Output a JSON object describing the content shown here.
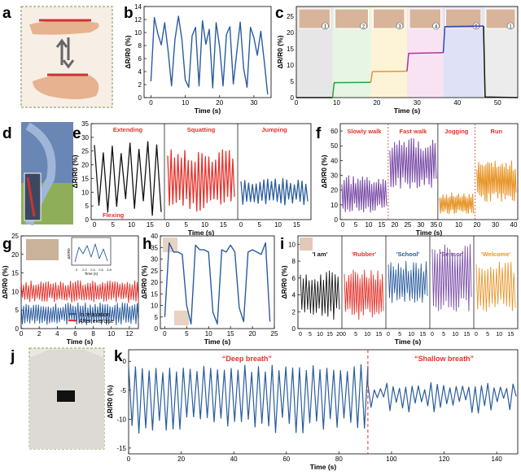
{
  "labels": {
    "a": "a",
    "b": "b",
    "c": "c",
    "d": "d",
    "e": "e",
    "f": "f",
    "g": "g",
    "h": "h",
    "i": "i",
    "j": "j",
    "k": "k"
  },
  "axis": {
    "y": "ΔR/R0 (%)",
    "x": "Time (s)"
  },
  "colors": {
    "blue": "#2a5c9e",
    "red": "#e5322b",
    "green": "#2ea043",
    "purple": "#7c4fa8",
    "orange": "#e8962a",
    "black": "#111111"
  },
  "icons": [
    "hand-photo",
    "double-arrow-icon",
    "arm-photo",
    "knee-photo",
    "wrist-photo",
    "throat-photo",
    "chest-photo",
    "face-photo"
  ],
  "chart_data": [
    {
      "id": "b",
      "type": "line",
      "x_ticks": [
        0,
        10,
        20,
        30
      ],
      "y_ticks": [
        0,
        2,
        4,
        6,
        8,
        10,
        12,
        14
      ],
      "xlim": [
        -2,
        35
      ],
      "ylim": [
        0,
        14
      ],
      "series": [
        {
          "color": "#2a5c9e",
          "x": [
            0,
            1,
            2,
            3,
            4,
            5,
            6,
            7,
            8,
            9,
            10,
            11,
            12,
            13,
            14,
            15,
            16,
            17,
            18,
            19,
            20,
            21,
            22,
            23,
            24,
            25,
            26,
            27,
            28,
            29,
            30,
            31,
            32,
            33,
            34
          ],
          "y": [
            2.5,
            12.3,
            9.8,
            8.1,
            11.5,
            7.2,
            1.8,
            8.9,
            12.5,
            9,
            2.7,
            1.6,
            9.5,
            10.8,
            1.8,
            11.8,
            8.2,
            10.5,
            1.5,
            11.5,
            7.8,
            1.8,
            9.7,
            10.9,
            2.1,
            6.9,
            11.6,
            4.5,
            1.6,
            10.8,
            9.2,
            6.5,
            10.2,
            5.6,
            0.5
          ]
        }
      ]
    },
    {
      "id": "c",
      "type": "line",
      "x_ticks": [
        0,
        10,
        20,
        30,
        40,
        50
      ],
      "y_ticks": [
        0,
        5,
        10,
        15,
        20,
        25
      ],
      "xlim": [
        0,
        55
      ],
      "ylim": [
        0,
        28
      ],
      "bands": [
        {
          "from": 0,
          "to": 9,
          "color": "#e6e6e6",
          "label": "1"
        },
        {
          "from": 9,
          "to": 18.5,
          "color": "#e7f5e4",
          "label": "2"
        },
        {
          "from": 18.5,
          "to": 27.5,
          "color": "#fdf4d8",
          "label": "3"
        },
        {
          "from": 27.5,
          "to": 36.5,
          "color": "#f8e3f3",
          "label": "4"
        },
        {
          "from": 36.5,
          "to": 46.5,
          "color": "#dfe1f7",
          "label": "5"
        },
        {
          "from": 46.5,
          "to": 55,
          "color": "#ececec",
          "label": "1"
        }
      ],
      "series": [
        {
          "color": "#111111",
          "x": [
            0,
            9
          ],
          "y": [
            0,
            0
          ]
        },
        {
          "color": "#2ea043",
          "x": [
            9,
            9.4,
            18.5
          ],
          "y": [
            0,
            4.6,
            4.7
          ]
        },
        {
          "color": "#e8962a",
          "x": [
            18.5,
            18.9,
            27.5
          ],
          "y": [
            4.7,
            8,
            8.1
          ]
        },
        {
          "color": "#b0359a",
          "x": [
            27.5,
            27.9,
            36.5
          ],
          "y": [
            8.1,
            13.6,
            13.8
          ]
        },
        {
          "color": "#3344c2",
          "x": [
            36.5,
            36.9,
            46.5
          ],
          "y": [
            13.8,
            21.8,
            22
          ]
        },
        {
          "color": "#111111",
          "x": [
            46.5,
            46.9,
            55
          ],
          "y": [
            22,
            0.2,
            0
          ]
        }
      ]
    },
    {
      "id": "e",
      "type": "line",
      "x_ticks_panels": [
        [
          0,
          5,
          10,
          15
        ],
        [
          0,
          5,
          10,
          15
        ],
        [
          0,
          5,
          10,
          15
        ]
      ],
      "y_ticks": [
        0,
        5,
        10,
        15,
        20,
        25,
        30,
        35
      ],
      "ylim": [
        0,
        35
      ],
      "panels": [
        {
          "label": "Extending",
          "label2": "Flexing",
          "color": "#111111",
          "cycles": 8,
          "lo": 1,
          "hi": 31
        },
        {
          "label": "Squatting",
          "color": "#e5322b",
          "cycles": 20,
          "lo": 3,
          "hi": 26
        },
        {
          "label": "Jumping",
          "color": "#2a5c9e",
          "cycles": 18,
          "lo": 5,
          "hi": 15
        }
      ]
    },
    {
      "id": "f",
      "type": "line",
      "x_ticks_panels": [
        [
          0,
          5,
          10,
          15,
          20,
          25,
          30,
          35
        ],
        [
          0,
          10,
          20,
          30,
          40
        ]
      ],
      "y_ticks": [
        0,
        10,
        20,
        30,
        40,
        50,
        60
      ],
      "ylim": [
        0,
        65
      ],
      "panels": [
        {
          "label": "Slowly walk",
          "color": "#7c4fa8",
          "cycles": 20,
          "lo": 5,
          "hi": 30
        },
        {
          "label": "Fast walk",
          "color": "#7c4fa8",
          "cycles": 20,
          "lo": 20,
          "hi": 55
        },
        {
          "label": "Jogging",
          "color": "#e8962a",
          "cycles": 20,
          "lo": 4,
          "hi": 18
        },
        {
          "label": "Run",
          "color": "#e8962a",
          "cycles": 22,
          "lo": 12,
          "hi": 40
        }
      ]
    },
    {
      "id": "g",
      "type": "line",
      "x_ticks": [
        0,
        2,
        4,
        6,
        8,
        10,
        12
      ],
      "y_ticks": [
        0,
        5,
        10,
        15,
        20,
        25
      ],
      "ylim": [
        0,
        25
      ],
      "legend": [
        "In relaxation",
        "After exercise"
      ],
      "inset": {
        "xlabel": "Time (s)",
        "ylabel": "ΔR/R0",
        "x_ticks": [
          2.0,
          2.2,
          2.4,
          2.6,
          2.8
        ]
      },
      "series": [
        {
          "name": "In relaxation",
          "color": "#2a5c9e",
          "cycles": 48,
          "lo": 1,
          "hi": 7
        },
        {
          "name": "After exercise",
          "color": "#e5322b",
          "cycles": 48,
          "lo": 7,
          "hi": 13
        }
      ]
    },
    {
      "id": "h",
      "type": "line",
      "x_ticks": [
        0,
        5,
        10,
        15,
        20,
        25
      ],
      "y_ticks": [
        0,
        5,
        10,
        15,
        20,
        25,
        30,
        35,
        40
      ],
      "ylim": [
        0,
        40
      ],
      "series": [
        {
          "color": "#2a5c9e",
          "x": [
            0,
            1,
            2,
            3,
            4,
            5,
            6,
            7,
            8,
            9,
            10,
            11,
            12,
            13,
            14,
            15,
            16,
            17,
            18,
            19,
            20,
            21,
            22,
            23,
            24
          ],
          "y": [
            5,
            37,
            33,
            33,
            32,
            10,
            2,
            36,
            34,
            34,
            33,
            7,
            2,
            34,
            33,
            36,
            33,
            9,
            3,
            33,
            34,
            33,
            32,
            37,
            3
          ]
        }
      ]
    },
    {
      "id": "i",
      "type": "line",
      "y_ticks": [
        0,
        2,
        4,
        6,
        8,
        10
      ],
      "ylim": [
        0,
        11
      ],
      "x_ticks_panels": [
        [
          0,
          5,
          10,
          15,
          20
        ],
        [
          0,
          5,
          10,
          15
        ],
        [
          0,
          5,
          10,
          15
        ],
        [
          0,
          5,
          10,
          15
        ],
        [
          0,
          5,
          10,
          15
        ]
      ],
      "panels": [
        {
          "label": "'I am'",
          "color": "#111111",
          "cycles": 14,
          "lo": 1,
          "hi": 7
        },
        {
          "label": "'Rubber'",
          "color": "#e5322b",
          "cycles": 18,
          "lo": 1,
          "hi": 7
        },
        {
          "label": "'School'",
          "color": "#2a5c9e",
          "cycles": 16,
          "lo": 3,
          "hi": 8
        },
        {
          "label": "'Sensor'",
          "color": "#7c4fa8",
          "cycles": 16,
          "lo": 2,
          "hi": 10
        },
        {
          "label": "'Welcome'",
          "color": "#e8962a",
          "cycles": 14,
          "lo": 2,
          "hi": 8
        }
      ]
    },
    {
      "id": "k",
      "type": "line",
      "x_ticks": [
        0,
        20,
        40,
        60,
        80,
        100,
        120,
        140
      ],
      "y_ticks": [
        -15,
        -10,
        -5,
        0
      ],
      "xlim": [
        0,
        148
      ],
      "ylim": [
        -16,
        2
      ],
      "annotations": [
        "“Deep breath”",
        "“Shallow breath”"
      ],
      "divider_x": 91,
      "series": [
        {
          "color": "#2a5c9e",
          "segments": [
            {
              "from": 0,
              "to": 91,
              "period": 2.6,
              "lo": -12.5,
              "hi": -0.5
            },
            {
              "from": 91,
              "to": 148,
              "period": 2.4,
              "lo": -9,
              "hi": -3.5
            }
          ]
        }
      ]
    }
  ]
}
